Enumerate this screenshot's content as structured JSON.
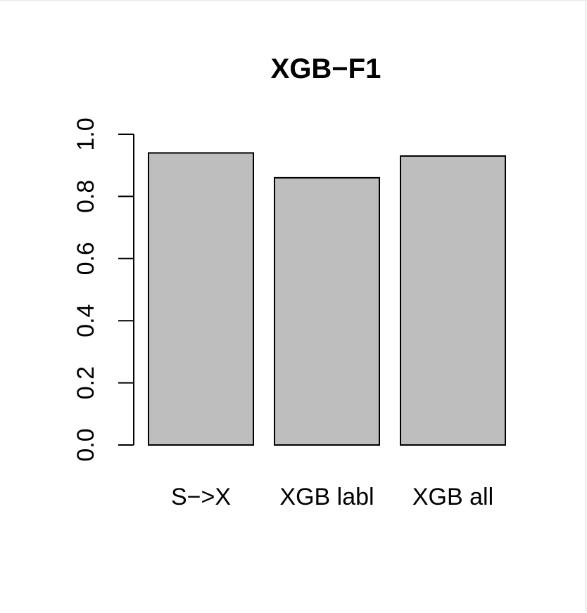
{
  "chart_data": {
    "type": "bar",
    "title": "XGB−F1",
    "xlabel": "",
    "ylabel": "",
    "categories": [
      "S−>X",
      "XGB labl",
      "XGB all"
    ],
    "values": [
      0.94,
      0.86,
      0.93
    ],
    "ylim": [
      0,
      1
    ],
    "yticks": [
      "0.0",
      "0.2",
      "0.4",
      "0.6",
      "0.8",
      "1.0"
    ],
    "grid": false,
    "bar_color": "#bebebe",
    "edge_color": "#000000"
  }
}
